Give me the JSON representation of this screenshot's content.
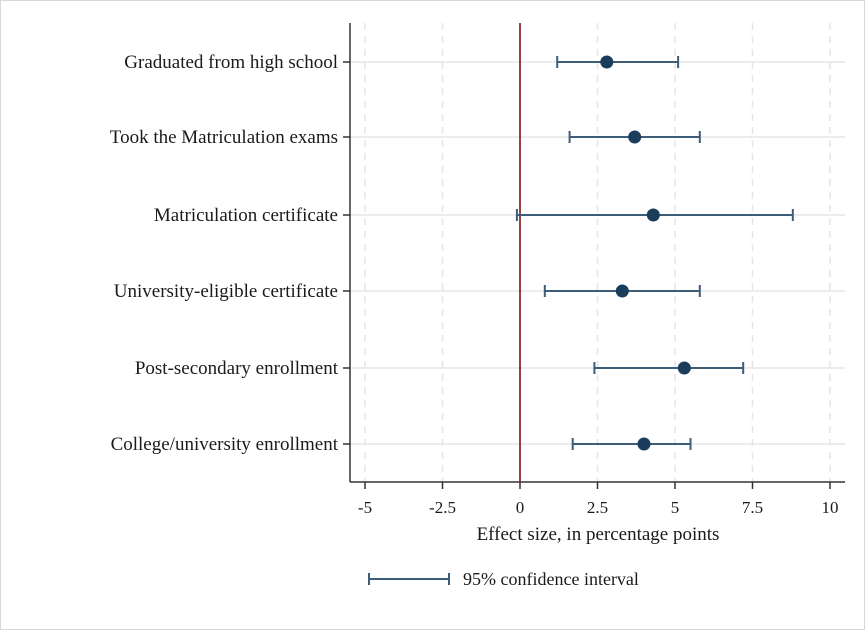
{
  "chart_data": {
    "type": "scatter",
    "subtype": "coefficient-plot-with-error-bars",
    "orientation": "horizontal",
    "title": "",
    "xlabel": "Effect size, in percentage points",
    "ylabel": "",
    "xlim": [
      -5,
      10
    ],
    "xticks": [
      -5,
      -2.5,
      0,
      2.5,
      5,
      7.5,
      10
    ],
    "xtick_labels": [
      "-5",
      "-2.5",
      "0",
      "2.5",
      "5",
      "7.5",
      "10"
    ],
    "reference_line": {
      "x": 0,
      "color": "#8b2d2d"
    },
    "grid": "vertical dashed",
    "categories": [
      "Graduated from high school",
      "Took the Matriculation exams",
      "Matriculation certificate",
      "University-eligible certificate",
      "Post-secondary enrollment",
      "College/university enrollment"
    ],
    "estimates": [
      2.8,
      3.7,
      4.3,
      3.3,
      5.3,
      4.0
    ],
    "ci_low": [
      1.2,
      1.6,
      -0.1,
      0.8,
      2.4,
      1.7
    ],
    "ci_high": [
      5.1,
      5.8,
      8.8,
      5.8,
      7.2,
      5.5
    ],
    "legend": {
      "position": "bottom",
      "label": "95% confidence interval"
    },
    "colors": {
      "marker": "#1b3d5c",
      "ci": "#3c5c78",
      "axis": "#333333",
      "grid": "#e6e6e6",
      "refline": "#8b2d2d"
    }
  }
}
